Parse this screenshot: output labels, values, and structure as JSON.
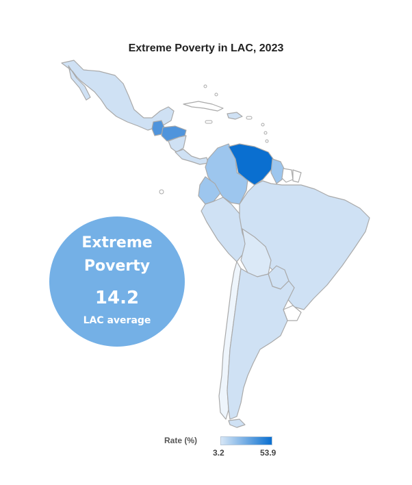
{
  "title": "Extreme Poverty in LAC, 2023",
  "callout": {
    "line1": "Extreme",
    "line2": "Poverty",
    "value": "14.2",
    "caption": "LAC average"
  },
  "legend": {
    "label": "Rate (%)",
    "min": "3.2",
    "max": "53.9",
    "color_low": "#d6e6f6",
    "color_high": "#0a6fd0"
  },
  "colors": {
    "land": "#cfe1f4",
    "border": "#a9a9a9",
    "no_data": "#ffffff",
    "medium": "#9dc6ee",
    "high": "#0a6fd0",
    "mid_high": "#4f94dc",
    "callout_bg": "#74b0e6"
  }
}
